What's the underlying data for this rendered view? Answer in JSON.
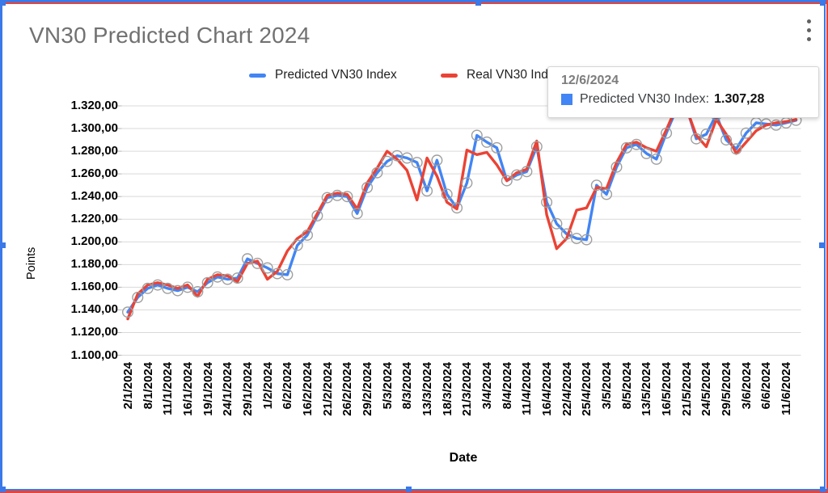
{
  "window": {
    "menu_icon": "kebab-menu-icon"
  },
  "colors": {
    "predicted": "#4285f4",
    "real": "#ea4335",
    "marker_ring": "#9e9e9e",
    "gridline": "#d9d9d9",
    "axis_tick": "#b5b5b5",
    "selection_blue": "#3b78e8",
    "selection_red": "#e94335",
    "title_text": "#717171"
  },
  "tooltip": {
    "date": "12/6/2024",
    "series_label": "Predicted VN30 Index:",
    "value": "1.307,28",
    "swatch_color": "#4285f4"
  },
  "chart_data": {
    "type": "line",
    "title": "VN30 Predicted Chart 2024",
    "xlabel": "Date",
    "ylabel": "Points",
    "ylim": [
      1100,
      1320
    ],
    "grid": true,
    "legend_position": "top",
    "y_tick_labels": [
      "1.320,00",
      "1.300,00",
      "1.280,00",
      "1.260,00",
      "1.240,00",
      "1.220,00",
      "1.200,00",
      "1.180,00",
      "1.160,00",
      "1.140,00",
      "1.120,00",
      "1.100,00"
    ],
    "y_tick_values": [
      1320,
      1300,
      1280,
      1260,
      1240,
      1220,
      1200,
      1180,
      1160,
      1140,
      1120,
      1100
    ],
    "x_tick_labels": [
      "2/1/2024",
      "8/1/2024",
      "11/1/2024",
      "16/1/2024",
      "19/1/2024",
      "24/1/2024",
      "29/1/2024",
      "1/2/2024",
      "6/2/2024",
      "16/2/2024",
      "21/2/2024",
      "26/2/2024",
      "29/2/2024",
      "5/3/2024",
      "8/3/2024",
      "13/3/2024",
      "18/3/2024",
      "21/3/2024",
      "3/4/2024",
      "8/4/2024",
      "11/4/2024",
      "16/4/2024",
      "22/4/2024",
      "25/4/2024",
      "3/5/2024",
      "8/5/2024",
      "13/5/2024",
      "16/5/2024",
      "21/5/2024",
      "24/5/2024",
      "29/5/2024",
      "3/6/2024",
      "6/6/2024",
      "11/6/2024"
    ],
    "points_per_tick": 2,
    "series": [
      {
        "name": "Predicted VN30 Index",
        "color": "#4285f4",
        "markers": true,
        "values": [
          1138,
          1151,
          1159,
          1162,
          1159,
          1157,
          1160,
          1156,
          1164,
          1169,
          1167,
          1168,
          1185,
          1181,
          1177,
          1172,
          1171,
          1197,
          1206,
          1223,
          1239,
          1241,
          1240,
          1225,
          1248,
          1261,
          1271,
          1276,
          1274,
          1270,
          1245,
          1272,
          1242,
          1230,
          1252,
          1294,
          1288,
          1283,
          1254,
          1259,
          1262,
          1284,
          1235,
          1216,
          1207,
          1203,
          1202,
          1250,
          1242,
          1266,
          1283,
          1286,
          1278,
          1273,
          1296,
          1317,
          1319,
          1291,
          1295,
          1312,
          1290,
          1282,
          1296,
          1305,
          1304,
          1303,
          1305,
          1307.28
        ]
      },
      {
        "name": "Real VN30 Index",
        "color": "#ea4335",
        "markers": false,
        "values": [
          1132,
          1154,
          1162,
          1164,
          1162,
          1159,
          1162,
          1152,
          1167,
          1171,
          1170,
          1165,
          1181,
          1183,
          1167,
          1174,
          1192,
          1203,
          1209,
          1225,
          1241,
          1243,
          1242,
          1229,
          1252,
          1265,
          1280,
          1273,
          1263,
          1237,
          1274,
          1258,
          1235,
          1229,
          1281,
          1277,
          1279,
          1268,
          1254,
          1261,
          1264,
          1289,
          1224,
          1194,
          1203,
          1228,
          1230,
          1248,
          1247,
          1270,
          1286,
          1288,
          1283,
          1280,
          1299,
          1319,
          1318,
          1294,
          1284,
          1308,
          1295,
          1278,
          1288,
          1298,
          1303,
          1305,
          1306,
          1308
        ]
      }
    ]
  }
}
